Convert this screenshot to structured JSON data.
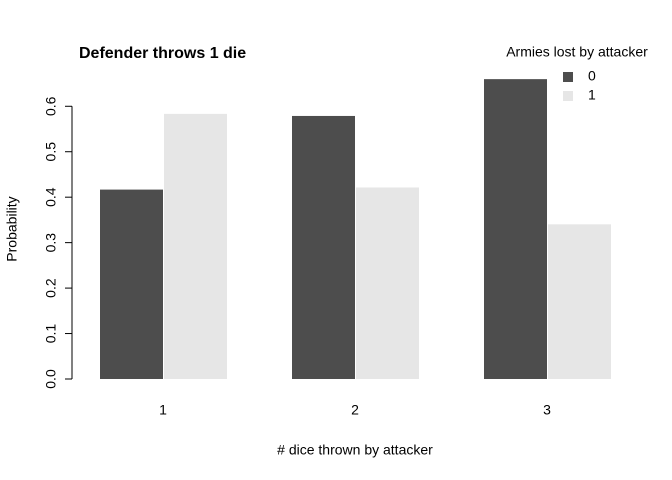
{
  "chart_data": {
    "type": "bar",
    "title": "Defender throws 1 die",
    "x_label": "# dice thrown by attacker",
    "y_label": "Probability",
    "legend_title": "Armies lost by attacker",
    "legend_position": "top-right",
    "categories": [
      "1",
      "2",
      "3"
    ],
    "series": [
      {
        "name": "0",
        "color": "#4d4d4d",
        "values": [
          0.4167,
          0.5787,
          0.6597
        ]
      },
      {
        "name": "1",
        "color": "#e6e6e6",
        "values": [
          0.5833,
          0.4213,
          0.3403
        ]
      }
    ],
    "ylim": [
      0,
      0.66
    ],
    "yticks": [
      {
        "value": 0,
        "label": "0.0"
      },
      0.1,
      0.2,
      0.3,
      0.4,
      0.5,
      0.6
    ]
  }
}
